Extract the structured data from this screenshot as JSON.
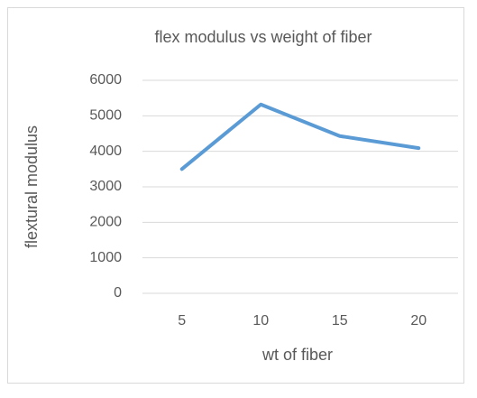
{
  "chart_data": {
    "type": "line",
    "title": "flex modulus vs weight of fiber",
    "x_label": "wt of fiber",
    "y_label": "flextural modulus",
    "categories": [
      "5",
      "10",
      "15",
      "20"
    ],
    "series": [
      {
        "name": "flextural modulus",
        "color": "#5b9bd5",
        "values": [
          3500,
          5320,
          4430,
          4090
        ]
      }
    ],
    "ylim": [
      0,
      6000
    ],
    "yticks": [
      0,
      1000,
      2000,
      3000,
      4000,
      5000,
      6000
    ],
    "grid": true
  }
}
